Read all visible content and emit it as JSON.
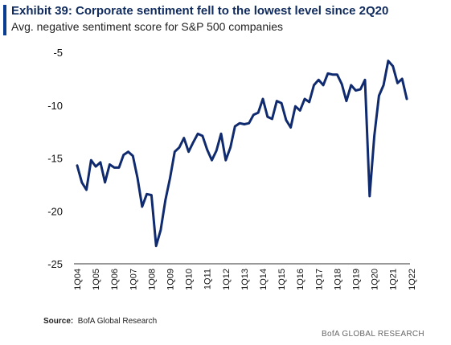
{
  "header": {
    "title": "Exhibit 39: Corporate  sentiment fell to the lowest level since 2Q20",
    "subtitle": "Avg. negative sentiment score for S&P 500 companies"
  },
  "footer": {
    "source_label": "Source:",
    "source_text": "BofA Global Research",
    "brand": "BofA GLOBAL RESEARCH"
  },
  "colors": {
    "line": "#0f2a6e",
    "accent": "#0a3d91",
    "axis": "#333333"
  },
  "chart_data": {
    "type": "line",
    "ylim": [
      -25,
      -4
    ],
    "yticks": [
      -5,
      -10,
      -15,
      -20,
      -25
    ],
    "xtick_labels": [
      "1Q04",
      "1Q05",
      "1Q06",
      "1Q07",
      "1Q08",
      "1Q09",
      "1Q10",
      "1Q11",
      "1Q12",
      "1Q13",
      "1Q14",
      "1Q15",
      "1Q16",
      "1Q17",
      "1Q18",
      "1Q19",
      "1Q20",
      "1Q21",
      "1Q22"
    ],
    "grid": false,
    "series": [
      {
        "values": [
          -15.7,
          -17.3,
          -18.0,
          -15.2,
          -15.8,
          -15.4,
          -17.3,
          -15.6,
          -15.9,
          -15.9,
          -14.7,
          -14.4,
          -14.8,
          -16.9,
          -19.6,
          -18.4,
          -18.5,
          -23.3,
          -21.8,
          -19.0,
          -16.9,
          -14.4,
          -14.0,
          -13.1,
          -14.4,
          -13.5,
          -12.7,
          -12.9,
          -14.2,
          -15.2,
          -14.3,
          -12.7,
          -15.2,
          -14.0,
          -12.0,
          -11.7,
          -11.8,
          -11.7,
          -10.9,
          -10.7,
          -9.4,
          -11.1,
          -11.3,
          -9.6,
          -9.8,
          -11.4,
          -12.1,
          -10.1,
          -10.5,
          -9.4,
          -9.7,
          -8.1,
          -7.6,
          -8.1,
          -7.0,
          -7.1,
          -7.1,
          -8.0,
          -9.6,
          -8.1,
          -8.6,
          -8.5,
          -7.6,
          -18.6,
          -12.9,
          -9.1,
          -8.1,
          -5.8,
          -6.3,
          -7.9,
          -7.5,
          -9.4
        ]
      }
    ]
  }
}
